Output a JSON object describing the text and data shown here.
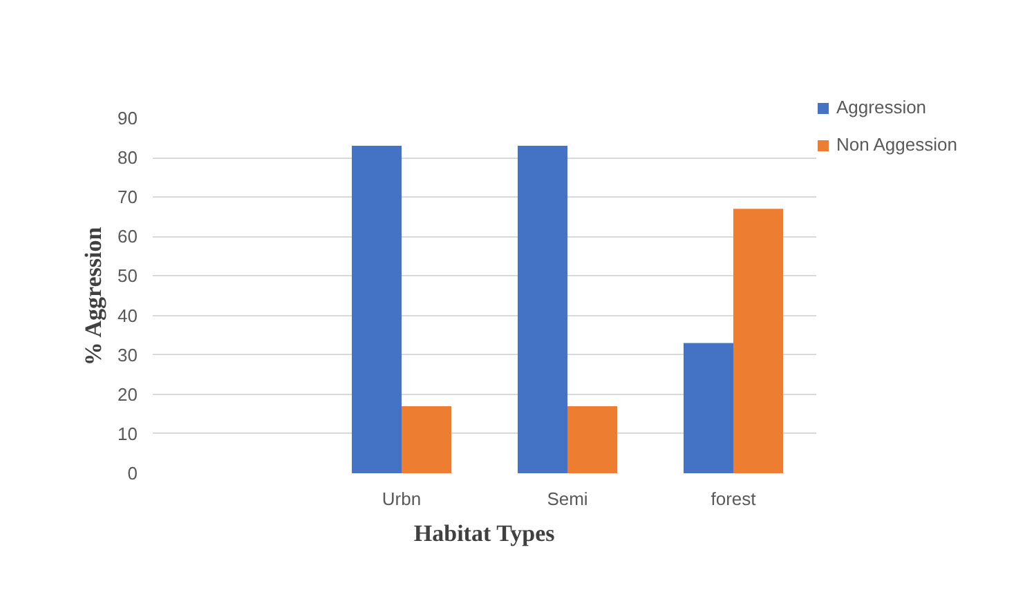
{
  "chart_data": {
    "type": "bar",
    "xlabel": "Habitat Types",
    "ylabel": "% Aggression",
    "categories": [
      null,
      "Urbn",
      "Semi",
      "forest"
    ],
    "series": [
      {
        "name": "Aggression",
        "color": "#4472c4",
        "values": [
          null,
          83,
          83,
          33
        ]
      },
      {
        "name": "Non Aggession",
        "color": "#ed7d31",
        "values": [
          null,
          17,
          17,
          67
        ]
      }
    ],
    "ylim": [
      0,
      90
    ],
    "yticks": [
      0,
      10,
      20,
      30,
      40,
      50,
      60,
      70,
      80,
      90
    ],
    "grid": "y",
    "legend": "top right"
  }
}
